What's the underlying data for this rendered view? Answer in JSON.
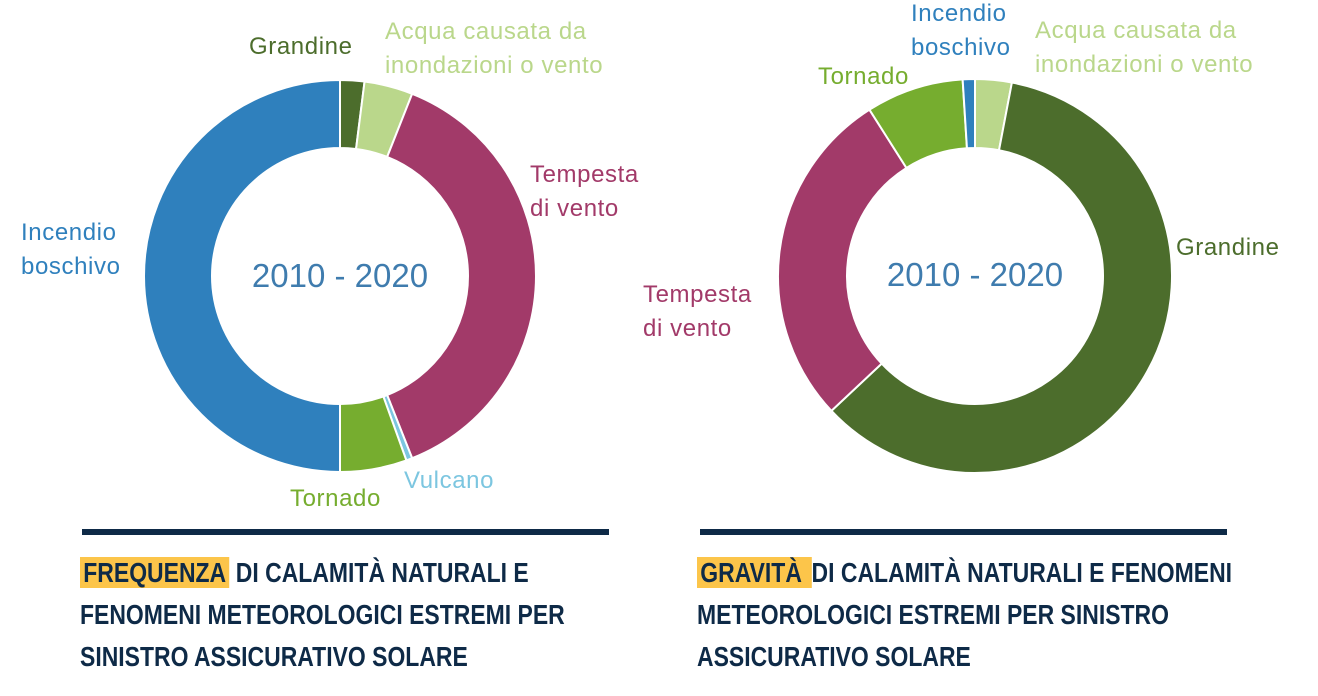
{
  "charts": [
    {
      "center_label": "2010 - 2020",
      "labels": {
        "grandine": "Grandine",
        "acqua": "Acqua causata da\ninondazioni o vento",
        "tempesta": "Tempesta\ndi vento",
        "vulcano": "Vulcano",
        "tornado": "Tornado",
        "incendio": "Incendio\nboschivo"
      },
      "caption": {
        "highlight": "FREQUENZA",
        "line1": " DI CALAMITÀ NATURALI E",
        "line2": "FENOMENI METEOROLOGICI ESTREMI PER",
        "line3": "SINISTRO ASSICURATIVO SOLARE"
      }
    },
    {
      "center_label": "2010 - 2020",
      "labels": {
        "incendio": "Incendio\nboschivo",
        "acqua": "Acqua causata da\ninondazioni o vento",
        "tornado": "Tornado",
        "grandine": "Grandine",
        "tempesta": "Tempesta\ndi vento"
      },
      "caption": {
        "highlight": "GRAVITÀ ",
        "line1": " DI CALAMITÀ NATURALI E FENOMENI",
        "line2": "METEOROLOGICI ESTREMI PER SINISTRO",
        "line3": "ASSICURATIVO SOLARE"
      }
    }
  ],
  "chart_data": [
    {
      "type": "pie",
      "center_label": "2010 - 2020",
      "categories": [
        "Grandine",
        "Acqua causata da inondazioni o vento",
        "Tempesta di vento",
        "Vulcano",
        "Tornado",
        "Incendio boschivo"
      ],
      "values": [
        2.0,
        4.0,
        38.0,
        0.5,
        5.5,
        50.0
      ],
      "colors": [
        "#4c6d2c",
        "#bad78b",
        "#a23a69",
        "#7cc6e0",
        "#76ad2f",
        "#2f80bd"
      ]
    },
    {
      "type": "pie",
      "center_label": "2010 - 2020",
      "categories": [
        "Acqua causata da inondazioni o vento",
        "Grandine",
        "Tempesta di vento",
        "Tornado",
        "Incendio boschivo"
      ],
      "values": [
        3.0,
        60.0,
        28.0,
        8.0,
        1.0
      ],
      "colors": [
        "#bad78b",
        "#4c6d2c",
        "#a23a69",
        "#76ad2f",
        "#2f80bd"
      ]
    }
  ]
}
